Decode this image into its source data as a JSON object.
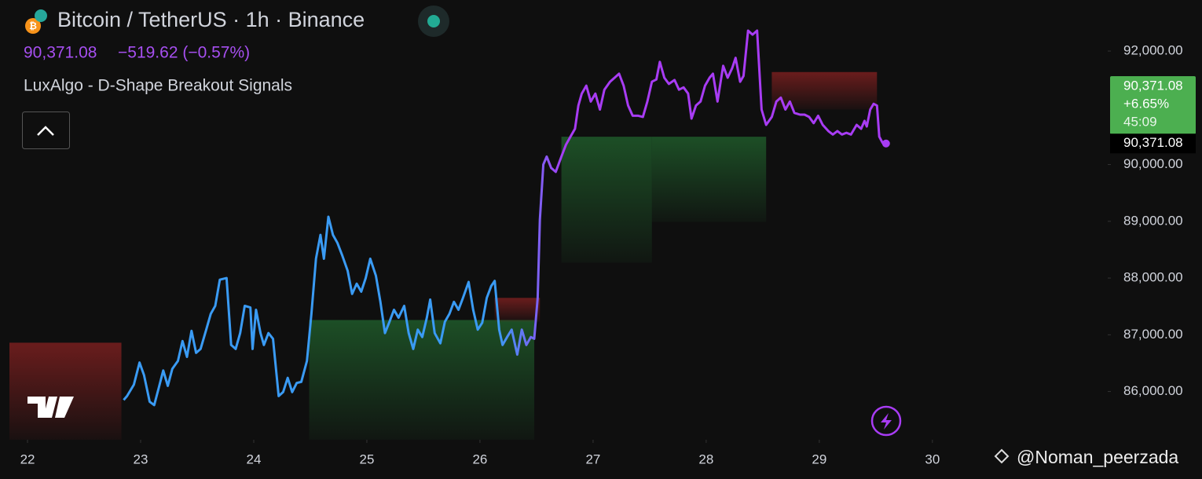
{
  "chart_data": {
    "type": "line",
    "title": "Bitcoin / TetherUS · 1h · Binance",
    "change": "−519.62 (−0.57%)",
    "indicator": "LuxAlgo - D-Shape Breakout Signals",
    "last_price": {
      "value": 90371.08,
      "label": "90,371.08"
    },
    "price_change": "+6.65%",
    "countdown": "45:09",
    "watermark": "@Noman_peerzada",
    "xlim": [
      21.84,
      31.55
    ],
    "xticks": [
      22,
      23,
      24,
      25,
      26,
      27,
      28,
      29,
      30
    ],
    "ylim": [
      85150,
      92900
    ],
    "yticks": [
      {
        "value": 86000,
        "label": "86,000.00"
      },
      {
        "value": 87000,
        "label": "87,000.00"
      },
      {
        "value": 88000,
        "label": "88,000.00"
      },
      {
        "value": 89000,
        "label": "89,000.00"
      },
      {
        "value": 90000,
        "label": "90,000.00"
      },
      {
        "value": 92000,
        "label": "92,000.00"
      }
    ],
    "series": [
      {
        "colors": [
          "#3a9bf4",
          "#a83cf4"
        ],
        "x": [
          22.85,
          22.88,
          22.94,
          22.99,
          23.03,
          23.08,
          23.12,
          23.16,
          23.2,
          23.24,
          23.28,
          23.33,
          23.37,
          23.41,
          23.45,
          23.49,
          23.53,
          23.58,
          23.62,
          23.66,
          23.7,
          23.76,
          23.8,
          23.84,
          23.88,
          23.92,
          23.97,
          23.99,
          24.02,
          24.06,
          24.09,
          24.13,
          24.17,
          24.22,
          24.26,
          24.3,
          24.34,
          24.38,
          24.42,
          24.47,
          24.51,
          24.55,
          24.59,
          24.62,
          24.66,
          24.7,
          24.74,
          24.78,
          24.83,
          24.87,
          24.91,
          24.95,
          24.99,
          25.03,
          25.08,
          25.12,
          25.16,
          25.2,
          25.24,
          25.28,
          25.33,
          25.37,
          25.41,
          25.45,
          25.49,
          25.53,
          25.56,
          25.6,
          25.65,
          25.69,
          25.73,
          25.77,
          25.81,
          25.85,
          25.9,
          25.94,
          25.98,
          26.02,
          26.06,
          26.1,
          26.13,
          26.17,
          26.2,
          26.24,
          26.28,
          26.33,
          26.37,
          26.41,
          26.45,
          26.48,
          26.51,
          26.53,
          26.56,
          26.59,
          26.63,
          26.67,
          26.72,
          26.76,
          26.8,
          26.84,
          26.87,
          26.9,
          26.94,
          26.98,
          27.02,
          27.06,
          27.1,
          27.15,
          27.19,
          27.23,
          27.27,
          27.31,
          27.35,
          27.4,
          27.44,
          27.48,
          27.52,
          27.56,
          27.59,
          27.63,
          27.67,
          27.72,
          27.76,
          27.8,
          27.84,
          27.87,
          27.91,
          27.95,
          27.99,
          28.03,
          28.06,
          28.1,
          28.15,
          28.19,
          28.23,
          28.26,
          28.3,
          28.33,
          28.37,
          28.41,
          28.45,
          28.49,
          28.53,
          28.58,
          28.62,
          28.66,
          28.7,
          28.74,
          28.78,
          28.83,
          28.87,
          28.91,
          28.95,
          28.99,
          29.03,
          29.08,
          29.12,
          29.16,
          29.2,
          29.24,
          29.28,
          29.33,
          29.37,
          29.4,
          29.42,
          29.45,
          29.48,
          29.51,
          29.53,
          29.56,
          29.59
        ],
        "values": [
          85850,
          85920,
          86120,
          86510,
          86290,
          85820,
          85760,
          86060,
          86370,
          86100,
          86400,
          86540,
          86890,
          86610,
          87070,
          86680,
          86750,
          87090,
          87370,
          87510,
          87970,
          88000,
          86820,
          86750,
          87030,
          87510,
          87480,
          86750,
          87440,
          87030,
          86820,
          87030,
          86930,
          85920,
          85990,
          86240,
          85990,
          86150,
          86170,
          86540,
          87370,
          88340,
          88760,
          88340,
          89080,
          88760,
          88620,
          88410,
          88130,
          87720,
          87900,
          87760,
          88000,
          88340,
          88040,
          87580,
          87030,
          87230,
          87440,
          87300,
          87510,
          87030,
          86750,
          87090,
          86960,
          87300,
          87620,
          87030,
          86850,
          87230,
          87370,
          87580,
          87440,
          87650,
          87930,
          87440,
          87090,
          87210,
          87650,
          87860,
          87950,
          87090,
          86820,
          86960,
          87090,
          86650,
          87090,
          86820,
          86960,
          86930,
          87650,
          89030,
          90000,
          90140,
          89940,
          89870,
          90140,
          90350,
          90490,
          90630,
          91040,
          91250,
          91390,
          91110,
          91250,
          90970,
          91320,
          91460,
          91530,
          91600,
          91390,
          91040,
          90860,
          90860,
          90840,
          91110,
          91460,
          91500,
          91810,
          91530,
          91420,
          91490,
          91320,
          91360,
          91250,
          90810,
          91040,
          91110,
          91390,
          91530,
          91600,
          91110,
          91740,
          91530,
          91700,
          91880,
          91460,
          91560,
          92360,
          92290,
          92360,
          90970,
          90700,
          90840,
          91110,
          91180,
          90970,
          91110,
          90910,
          90880,
          90880,
          90840,
          90730,
          90860,
          90700,
          90590,
          90530,
          90590,
          90530,
          90560,
          90530,
          90700,
          90630,
          90770,
          90670,
          90970,
          91070,
          91040,
          90490,
          90380,
          90371.08
        ]
      }
    ],
    "zones": [
      {
        "x": [
          21.84,
          22.83
        ],
        "y": [
          85150,
          86860
        ],
        "color": "#7a1f1f"
      },
      {
        "x": [
          24.49,
          26.48
        ],
        "y": [
          85150,
          87260
        ],
        "color": "#1f5a2a"
      },
      {
        "x": [
          26.13,
          26.53
        ],
        "y": [
          87230,
          87650
        ],
        "color": "#7a1f1f"
      },
      {
        "x": [
          26.72,
          27.52
        ],
        "y": [
          88270,
          90490
        ],
        "color": "#1f5a2a"
      },
      {
        "x": [
          27.52,
          28.53
        ],
        "y": [
          88990,
          90490
        ],
        "color": "#1f5a2a"
      },
      {
        "x": [
          28.58,
          29.51
        ],
        "y": [
          90970,
          91630
        ],
        "color": "#7a1f1f"
      }
    ]
  }
}
